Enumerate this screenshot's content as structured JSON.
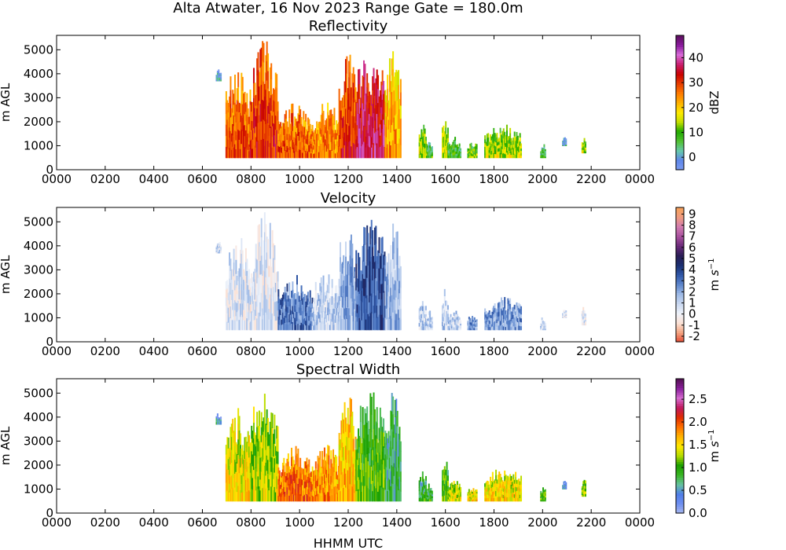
{
  "figure": {
    "suptitle": "Alta Atwater, 16 Nov 2023 Range Gate = 180.0m",
    "xlabel": "HHMM UTC"
  },
  "chart_data": [
    {
      "type": "heatmap",
      "title": "Reflectivity",
      "ylabel": "m AGL",
      "xticks": [
        "0000",
        "0200",
        "0400",
        "0600",
        "0800",
        "1000",
        "1200",
        "1400",
        "1600",
        "1800",
        "2000",
        "2200",
        "0000"
      ],
      "xlim_hours": [
        0,
        24
      ],
      "yticks": [
        0,
        1000,
        2000,
        3000,
        4000,
        5000
      ],
      "ylim": [
        0,
        5600
      ],
      "colorbar": {
        "label": "dBZ",
        "ticks": [
          "0",
          "10",
          "20",
          "30",
          "40"
        ],
        "tick_values": [
          0,
          10,
          20,
          30,
          40
        ],
        "range": [
          -5,
          49
        ],
        "colors": [
          "#7b9cf0",
          "#5f86ea",
          "#66c8ab",
          "#52c030",
          "#1faa00",
          "#c4df00",
          "#ffeb00",
          "#ffb000",
          "#ff7a00",
          "#e63c00",
          "#c80000",
          "#c91e6e",
          "#d86bd8",
          "#8a1a9e",
          "#5c0f5c"
        ]
      },
      "segments": [
        {
          "t0": 6.55,
          "t1": 6.75,
          "y0": 3700,
          "y1": 4200,
          "level": 0.05
        },
        {
          "t0": 6.95,
          "t1": 7.95,
          "y0": 500,
          "y1": 4400,
          "level": 0.55
        },
        {
          "t0": 7.95,
          "t1": 9.1,
          "y0": 500,
          "y1": 5400,
          "level": 0.6
        },
        {
          "t0": 9.1,
          "t1": 10.5,
          "y0": 500,
          "y1": 2800,
          "level": 0.55
        },
        {
          "t0": 10.5,
          "t1": 11.6,
          "y0": 500,
          "y1": 2900,
          "level": 0.5
        },
        {
          "t0": 11.6,
          "t1": 12.3,
          "y0": 500,
          "y1": 5100,
          "level": 0.6
        },
        {
          "t0": 12.3,
          "t1": 13.5,
          "y0": 500,
          "y1": 5200,
          "level": 0.7
        },
        {
          "t0": 13.5,
          "t1": 14.15,
          "y0": 500,
          "y1": 5100,
          "level": 0.45
        },
        {
          "t0": 14.9,
          "t1": 15.2,
          "y0": 500,
          "y1": 1900,
          "level": 0.3
        },
        {
          "t0": 15.2,
          "t1": 15.45,
          "y0": 500,
          "y1": 1300,
          "level": 0.2
        },
        {
          "t0": 15.85,
          "t1": 16.1,
          "y0": 500,
          "y1": 2300,
          "level": 0.3
        },
        {
          "t0": 16.1,
          "t1": 16.6,
          "y0": 500,
          "y1": 1400,
          "level": 0.2
        },
        {
          "t0": 16.9,
          "t1": 17.3,
          "y0": 500,
          "y1": 1200,
          "level": 0.25
        },
        {
          "t0": 17.6,
          "t1": 19.1,
          "y0": 500,
          "y1": 1900,
          "level": 0.3
        },
        {
          "t0": 19.9,
          "t1": 20.1,
          "y0": 500,
          "y1": 1100,
          "level": 0.15
        },
        {
          "t0": 20.8,
          "t1": 20.95,
          "y0": 1000,
          "y1": 1400,
          "level": 0.05
        },
        {
          "t0": 21.6,
          "t1": 21.75,
          "y0": 700,
          "y1": 1500,
          "level": 0.3
        }
      ]
    },
    {
      "type": "heatmap",
      "title": "Velocity",
      "ylabel": "m s⁻¹ axis: m AGL",
      "ylabel_y": "m AGL",
      "xticks": [
        "0000",
        "0200",
        "0400",
        "0600",
        "0800",
        "1000",
        "1200",
        "1400",
        "1600",
        "1800",
        "2000",
        "2200",
        "0000"
      ],
      "xlim_hours": [
        0,
        24
      ],
      "yticks": [
        0,
        1000,
        2000,
        3000,
        4000,
        5000
      ],
      "ylim": [
        0,
        5600
      ],
      "colorbar": {
        "label_main": "m ",
        "label_italic": "s",
        "label_sup": "−1",
        "ticks": [
          "-2",
          "-1",
          "0",
          "1",
          "2",
          "3",
          "4",
          "5",
          "6",
          "7",
          "8",
          "9"
        ],
        "tick_values": [
          -2,
          -1,
          0,
          1,
          2,
          3,
          4,
          5,
          6,
          7,
          8,
          9
        ],
        "range": [
          -2.5,
          9.6
        ],
        "colors": [
          "#e34a33",
          "#f4a582",
          "#fbe2d6",
          "#eef2fa",
          "#c9d8f0",
          "#9db9e6",
          "#5d86cc",
          "#2f57a8",
          "#1b2f70",
          "#2a1e55",
          "#6a2a7a",
          "#a8509e",
          "#d07bb0",
          "#ef9b80",
          "#f7a25a"
        ]
      },
      "segments": [
        {
          "t0": 6.55,
          "t1": 6.75,
          "y0": 3700,
          "y1": 4200,
          "level": 0.28
        },
        {
          "t0": 6.95,
          "t1": 7.95,
          "y0": 500,
          "y1": 4400,
          "level": 0.25
        },
        {
          "t0": 7.95,
          "t1": 9.1,
          "y0": 500,
          "y1": 5400,
          "level": 0.24
        },
        {
          "t0": 9.1,
          "t1": 10.5,
          "y0": 500,
          "y1": 2800,
          "level": 0.45
        },
        {
          "t0": 10.5,
          "t1": 11.6,
          "y0": 500,
          "y1": 2900,
          "level": 0.3
        },
        {
          "t0": 11.6,
          "t1": 12.3,
          "y0": 500,
          "y1": 5100,
          "level": 0.35
        },
        {
          "t0": 12.3,
          "t1": 13.5,
          "y0": 500,
          "y1": 5200,
          "level": 0.5
        },
        {
          "t0": 13.5,
          "t1": 14.15,
          "y0": 500,
          "y1": 5100,
          "level": 0.35
        },
        {
          "t0": 14.9,
          "t1": 15.2,
          "y0": 500,
          "y1": 1900,
          "level": 0.3
        },
        {
          "t0": 15.2,
          "t1": 15.45,
          "y0": 500,
          "y1": 1300,
          "level": 0.3
        },
        {
          "t0": 15.85,
          "t1": 16.1,
          "y0": 500,
          "y1": 2300,
          "level": 0.3
        },
        {
          "t0": 16.1,
          "t1": 16.6,
          "y0": 500,
          "y1": 1400,
          "level": 0.3
        },
        {
          "t0": 16.9,
          "t1": 17.3,
          "y0": 500,
          "y1": 1200,
          "level": 0.4
        },
        {
          "t0": 17.6,
          "t1": 19.1,
          "y0": 500,
          "y1": 1900,
          "level": 0.4
        },
        {
          "t0": 19.9,
          "t1": 20.1,
          "y0": 500,
          "y1": 1100,
          "level": 0.3
        },
        {
          "t0": 20.8,
          "t1": 20.95,
          "y0": 1000,
          "y1": 1400,
          "level": 0.25
        },
        {
          "t0": 21.6,
          "t1": 21.75,
          "y0": 700,
          "y1": 1500,
          "level": 0.25
        }
      ]
    },
    {
      "type": "heatmap",
      "title": "Spectral Width",
      "ylabel_y": "m AGL",
      "xticks": [
        "0000",
        "0200",
        "0400",
        "0600",
        "0800",
        "1000",
        "1200",
        "1400",
        "1600",
        "1800",
        "2000",
        "2200",
        "0000"
      ],
      "xlim_hours": [
        0,
        24
      ],
      "yticks": [
        0,
        1000,
        2000,
        3000,
        4000,
        5000
      ],
      "ylim": [
        0,
        5600
      ],
      "colorbar": {
        "label_main": "m ",
        "label_italic": "s",
        "label_sup": "−1",
        "ticks": [
          "0.0",
          "0.5",
          "1.0",
          "1.5",
          "2.0",
          "2.5"
        ],
        "tick_values": [
          0,
          0.5,
          1.0,
          1.5,
          2.0,
          2.5
        ],
        "range": [
          0,
          2.95
        ],
        "colors": [
          "#a8b8f0",
          "#6f8ff0",
          "#4f7ee8",
          "#67c2a0",
          "#39b522",
          "#1a9e00",
          "#b5dc00",
          "#ffe800",
          "#ffb300",
          "#ff7000",
          "#e02c00",
          "#c0185e",
          "#d66cd0",
          "#8a1f9c",
          "#541052"
        ]
      },
      "segments": [
        {
          "t0": 6.55,
          "t1": 6.75,
          "y0": 3700,
          "y1": 4200,
          "level": 0.12
        },
        {
          "t0": 6.95,
          "t1": 7.95,
          "y0": 500,
          "y1": 4400,
          "level": 0.45
        },
        {
          "t0": 7.95,
          "t1": 9.1,
          "y0": 500,
          "y1": 5400,
          "level": 0.4
        },
        {
          "t0": 9.1,
          "t1": 10.5,
          "y0": 500,
          "y1": 2800,
          "level": 0.6
        },
        {
          "t0": 10.5,
          "t1": 11.6,
          "y0": 500,
          "y1": 2900,
          "level": 0.55
        },
        {
          "t0": 11.6,
          "t1": 12.3,
          "y0": 500,
          "y1": 5100,
          "level": 0.5
        },
        {
          "t0": 12.3,
          "t1": 13.5,
          "y0": 500,
          "y1": 5200,
          "level": 0.3
        },
        {
          "t0": 13.5,
          "t1": 14.15,
          "y0": 500,
          "y1": 5100,
          "level": 0.2
        },
        {
          "t0": 14.9,
          "t1": 15.2,
          "y0": 500,
          "y1": 1900,
          "level": 0.25
        },
        {
          "t0": 15.2,
          "t1": 15.45,
          "y0": 500,
          "y1": 1300,
          "level": 0.25
        },
        {
          "t0": 15.85,
          "t1": 16.1,
          "y0": 500,
          "y1": 2300,
          "level": 0.3
        },
        {
          "t0": 16.1,
          "t1": 16.6,
          "y0": 500,
          "y1": 1400,
          "level": 0.4
        },
        {
          "t0": 16.9,
          "t1": 17.3,
          "y0": 500,
          "y1": 1200,
          "level": 0.45
        },
        {
          "t0": 17.6,
          "t1": 19.1,
          "y0": 500,
          "y1": 1900,
          "level": 0.45
        },
        {
          "t0": 19.9,
          "t1": 20.1,
          "y0": 500,
          "y1": 1100,
          "level": 0.3
        },
        {
          "t0": 20.8,
          "t1": 20.95,
          "y0": 1000,
          "y1": 1400,
          "level": 0.1
        },
        {
          "t0": 21.6,
          "t1": 21.75,
          "y0": 700,
          "y1": 1500,
          "level": 0.35
        }
      ]
    }
  ]
}
